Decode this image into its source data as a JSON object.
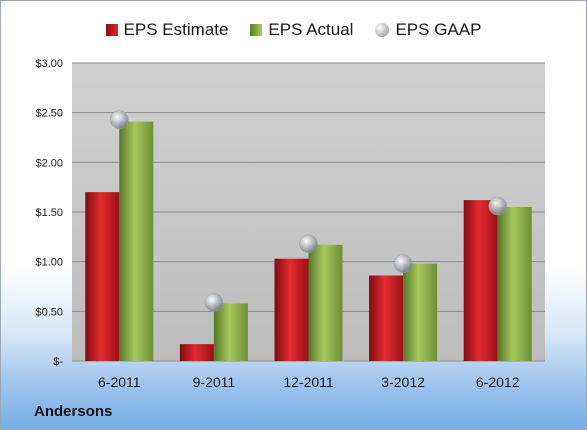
{
  "company": "Andersons",
  "legend": {
    "estimate": "EPS Estimate",
    "actual": "EPS Actual",
    "gaap": "EPS GAAP"
  },
  "colors": {
    "estimate": "#d9252a",
    "actual": "#8fb24a",
    "gaap": "#b8bcc2",
    "plot_bg": "#c6c6c6"
  },
  "chart_data": {
    "type": "bar",
    "categories": [
      "6-2011",
      "9-2011",
      "12-2011",
      "3-2012",
      "6-2012"
    ],
    "series": [
      {
        "name": "EPS Estimate",
        "values": [
          1.7,
          0.17,
          1.03,
          0.86,
          1.62
        ]
      },
      {
        "name": "EPS Actual",
        "values": [
          2.41,
          0.58,
          1.17,
          0.98,
          1.55
        ]
      },
      {
        "name": "EPS GAAP",
        "values": [
          2.43,
          0.59,
          1.18,
          0.98,
          1.56
        ],
        "marker": "circle"
      }
    ],
    "ylim": [
      0,
      3.0
    ],
    "yticks": [
      {
        "value": 3.0,
        "label": "$3.00"
      },
      {
        "value": 2.5,
        "label": "$2.50"
      },
      {
        "value": 2.0,
        "label": "$2.00"
      },
      {
        "value": 1.5,
        "label": "$1.50"
      },
      {
        "value": 1.0,
        "label": "$1.00"
      },
      {
        "value": 0.5,
        "label": "$0.50"
      },
      {
        "value": 0.0,
        "label": "$-"
      }
    ],
    "grid": true,
    "legend_position": "top"
  }
}
